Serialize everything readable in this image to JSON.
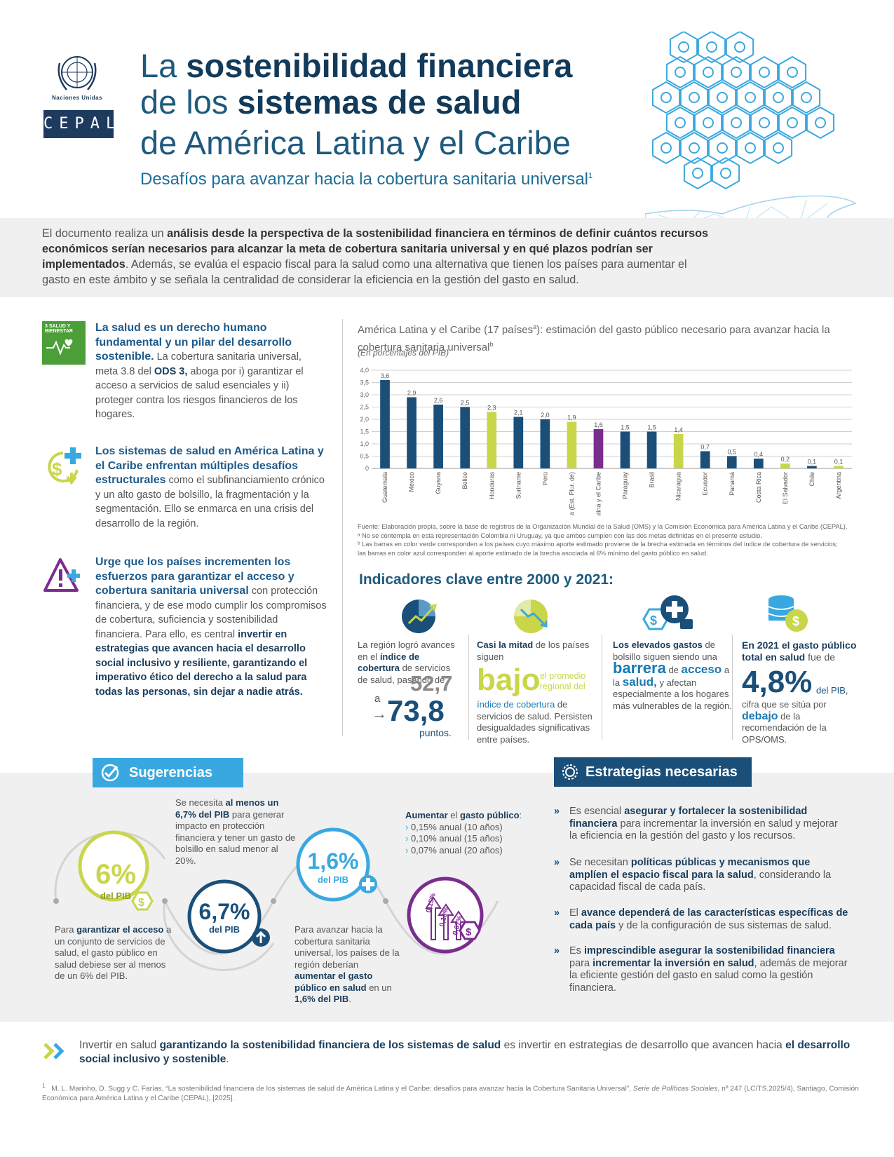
{
  "header": {
    "org_name": "Naciones Unidas",
    "org_logo_text": "CEPAL",
    "title_line1_pre": "La ",
    "title_line1_bold": "sostenibilidad financiera",
    "title_line2_pre": "de los ",
    "title_line2_bold": "sistemas de salud",
    "title_line3": "de América Latina y el Caribe",
    "subtitle": "Desafíos para avanzar hacia la cobertura sanitaria universal",
    "subtitle_note": "1"
  },
  "intro": {
    "p1": "El documento realiza un ",
    "b1": "análisis desde la perspectiva de la sostenibilidad financiera en términos de definir cuántos recursos económicos serían necesarios para alcanzar la meta de cobertura sanitaria universal y en qué plazos podrían ser implementados",
    "p2": ". Además, se evalúa el espacio fiscal para la salud como una alternativa que tienen los países para aumentar el gasto en este ámbito y se señala la centralidad de considerar la eficiencia en la gestión del gasto en salud."
  },
  "left_blocks": [
    {
      "icon": "sdg3-icon",
      "sdg_label": "3 SALUD Y BIENESTAR",
      "highlight": "La salud es un derecho humano fundamental y un pilar  del desarrollo sostenible.",
      "text_a": " La cobertura sanitaria universal, meta 3.8 del ",
      "text_b": "ODS 3,",
      "text_c": " aboga por i) garantizar el acceso a servicios de salud esenciales y ii) proteger contra los riesgos financieros de los hogares."
    },
    {
      "icon": "money-plus-icon",
      "highlight": "Los sistemas de salud en América Latina y el Caribe enfrentan múltiples desafíos estructurales",
      "text_a": " como el subfinanciamiento crónico y un alto gasto de bolsillo, la fragmentación y la segmentación. Ello se enmarca en una crisis del desarrollo de la región."
    },
    {
      "icon": "warning-icon",
      "highlight": "Urge que los países incrementen los esfuerzos para garantizar el acceso y cobertura sanitaria universal",
      "text_a": " con protección financiera, y de ese modo cumplir los compromisos de cobertura, suficiencia y sostenibilidad financiera. Para ello, es central ",
      "text_b": "invertir en estrategias que avancen hacia el desarrollo social inclusivo y resiliente, garantizando el imperativo ético del derecho a la salud para todas las personas, sin dejar a nadie atrás."
    }
  ],
  "chart_data": {
    "type": "bar",
    "title": "América Latina y el Caribe (17 países",
    "title_note_a": "a",
    "title_mid": "): estimación del gasto público necesario para avanzar hacia la cobertura sanitaria universal",
    "title_note_b": "b",
    "units": "(En porcentajes del PIB)",
    "ylim": [
      0,
      4
    ],
    "yticks": [
      "0",
      "0,5",
      "1,0",
      "1,5",
      "2,0",
      "2,5",
      "3,0",
      "3,5",
      "4,0"
    ],
    "categories": [
      "Guatemala",
      "México",
      "Guyana",
      "Belice",
      "Honduras",
      "Suriname",
      "Perú",
      "Bolivia (Est. Plur. de)",
      "América Latina y el Caribe",
      "Paraguay",
      "Brasil",
      "Nicaragua",
      "Ecuador",
      "Panamá",
      "Costa Rica",
      "El Salvador",
      "Chile",
      "Argentina"
    ],
    "values": [
      3.6,
      2.9,
      2.6,
      2.5,
      2.3,
      2.1,
      2.0,
      1.9,
      1.6,
      1.5,
      1.5,
      1.4,
      0.7,
      0.5,
      0.4,
      0.2,
      0.1,
      0.1
    ],
    "value_labels": [
      "3,6",
      "2,9",
      "2,6",
      "2,5",
      "2,3",
      "2,1",
      "2,0",
      "1,9",
      "1,6",
      "1,5",
      "1,5",
      "1,4",
      "0,7",
      "0,5",
      "0,4",
      "0,2",
      "0,1",
      "0,1"
    ],
    "bar_colors": [
      "#1a4f7a",
      "#1a4f7a",
      "#1a4f7a",
      "#1a4f7a",
      "#c9d64a",
      "#1a4f7a",
      "#1a4f7a",
      "#c9d64a",
      "#7b2d8e",
      "#1a4f7a",
      "#1a4f7a",
      "#c9d64a",
      "#1a4f7a",
      "#1a4f7a",
      "#1a4f7a",
      "#c9d64a",
      "#1a4f7a",
      "#c9d64a"
    ],
    "grid": true,
    "notes": [
      "Fuente: Elaboración propia, sobre la base de registros de la Organización Mundial de la Salud (OMS) y la Comisión Económica para América Latina y el Caribe (CEPAL).",
      "ᵃ No se contempla en esta representación Colombia ni Uruguay, ya que ambos cumplen con las dos metas definidas en el presente estudio.",
      "ᵇ Las barras en color verde corresponden a los países cuyo máximo aporte estimado proviene de la brecha estimada en términos del índice de cobertura de servicios;",
      "   las barras en color azul corresponden al aporte estimado de la brecha asociada al 6% mínimo del gasto público en salud."
    ]
  },
  "indicators": {
    "heading": "Indicadores clave entre 2000 y 2021:",
    "i1": {
      "icon": "growth-chart-icon",
      "a": "La región logró avances en el ",
      "b": "índice de cobertura",
      "c": " de servicios de salud, pasando de ",
      "from": "52,7",
      "to_pre": "a",
      "to": "73,8",
      "unit": "puntos."
    },
    "i2": {
      "icon": "decline-chart-icon",
      "a": "Casi la mitad",
      "b": " de los países siguen",
      "big": "bajo",
      "c": " el promedio regional del ",
      "d": "índice de cobertura",
      "e": " de servicios de salud. Persisten desigualdades significativas entre países."
    },
    "i3": {
      "icon": "health-wallet-icon",
      "a": "Los elevados gastos",
      "b": " de bolsillo siguen siendo una ",
      "c": "barrera",
      "d": " de ",
      "e": "acceso",
      "f": " a la ",
      "g": "salud,",
      "h": " y afectan especialmente a los hogares más vulnerables de la región."
    },
    "i4": {
      "icon": "coins-dollar-icon",
      "a": "En 2021 el gasto público total en salud",
      "b": " fue de",
      "big": "4,8%",
      "c": "del PIB,",
      "d": "cifra que se sitúa por ",
      "e": "debajo",
      "f": " de la recomendación de la OPS/OMS."
    }
  },
  "suggestions": {
    "banner": "Sugerencias",
    "c1_value": "6%",
    "c1_unit": "del PIB",
    "c1_a": "Para ",
    "c1_b": "garantizar el acceso",
    "c1_c": " a un conjunto de servicios de salud, el gasto público en salud debiese ser al menos de un 6% del PIB.",
    "c2_value": "6,7%",
    "c2_unit": "del PIB",
    "c2_a": "Se necesita ",
    "c2_b": "al menos un 6,7% del PIB",
    "c2_c": " para generar impacto en protección financiera y tener un gasto de bolsillo en salud menor al 20%.",
    "c3_value": "1,6%",
    "c3_unit": "del PIB",
    "c3_a": "Para avanzar hacia la cobertura sanitaria universal, los países de la región deberían ",
    "c3_b": "aumentar el gasto público en salud",
    "c3_c": " en un ",
    "c3_d": "1,6% del PIB",
    "c3_e": ".",
    "c4_head_a": "Aumentar",
    "c4_head_b": " el ",
    "c4_head_c": "gasto público",
    "c4_head_d": ":",
    "c4_items": [
      "0,15% anual (10 años)",
      "0,10% anual (15 años)",
      "0,07% anual (20 años)"
    ],
    "c4_arrows": [
      "0,15%",
      "0,10%",
      "0,07%"
    ]
  },
  "strategies": {
    "banner": "Estrategias necesarias",
    "items": [
      {
        "a": "Es esencial ",
        "b": "asegurar y fortalecer la sostenibilidad financiera",
        "c": " para incrementar la inversión en salud y mejorar la eficiencia en la gestión del gasto y los recursos."
      },
      {
        "a": "Se necesitan ",
        "b": "políticas públicas y mecanismos que amplíen el espacio fiscal para la salud",
        "c": ", considerando la capacidad fiscal de cada país."
      },
      {
        "a": "El ",
        "b": "avance dependerá de las características específicas de cada país",
        "c": " y de la configuración de sus sistemas de salud."
      },
      {
        "a": "Es ",
        "b": "imprescindible asegurar la sostenibilidad financiera",
        "c": " para ",
        "d": "incrementar la inversión en salud",
        "e": ", además de mejorar la eficiente gestión del gasto en salud como la gestión financiera."
      }
    ]
  },
  "closing": {
    "a": "Invertir en salud ",
    "b": "garantizando la sostenibilidad financiera de los sistemas de salud",
    "c": " es invertir en estrategias de desarrollo que avancen hacia ",
    "d": "el desarrollo social inclusivo y sostenible",
    "e": "."
  },
  "footnote": {
    "num": "1",
    "a": "M. L. Marinho, D. Sugg y C. Farías, “La sostenibilidad financiera de los sistemas de salud de América Latina y el Caribe: desafíos para avanzar hacia la Cobertura Sanitaria Universal”, ",
    "b": "Serie de Políticas Sociales",
    "c": ", nº 247 (LC/TS.2025/4), Santiago, Comisión Económica para América Latina y el Caribe (CEPAL), [2025]."
  }
}
